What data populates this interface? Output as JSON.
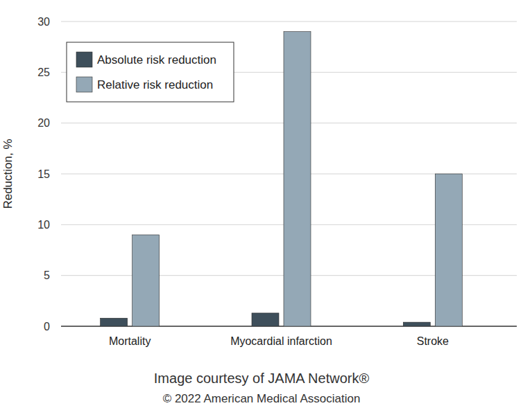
{
  "chart_data": {
    "type": "bar",
    "y_label": "Reduction, %",
    "categories": [
      "Mortality",
      "Myocardial infarction",
      "Stroke"
    ],
    "series": [
      {
        "name": "Absolute risk reduction",
        "color": "#3e4f5b",
        "values": [
          0.8,
          1.3,
          0.4
        ]
      },
      {
        "name": "Relative risk reduction",
        "color": "#94a8b6",
        "values": [
          9,
          29,
          15
        ]
      }
    ],
    "ylim": [
      0,
      30
    ],
    "yticks": [
      0,
      5,
      10,
      15,
      20,
      25,
      30
    ],
    "grid": true,
    "legend": "upper left",
    "annotations": [
      "Image courtesy of JAMA Network®",
      "© 2022 American Medical Association"
    ]
  }
}
